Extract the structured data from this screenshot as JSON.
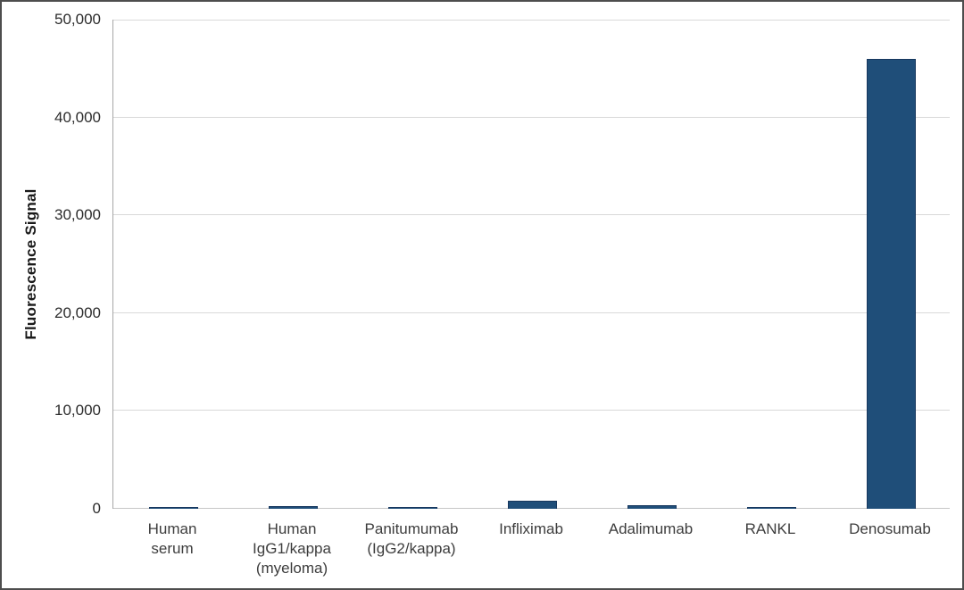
{
  "figure": {
    "background": "#ffffff",
    "border_color": "#4d4d4d"
  },
  "chart_data": {
    "type": "bar",
    "title": "",
    "xlabel": "",
    "ylabel": "Fluorescence Signal",
    "ylim": [
      0,
      50000
    ],
    "grid": "horizontal",
    "legend_position": "none",
    "y_ticks": [
      {
        "value": 50000,
        "label": "50,000"
      },
      {
        "value": 40000,
        "label": "40,000"
      },
      {
        "value": 30000,
        "label": "30,000"
      },
      {
        "value": 20000,
        "label": "20,000"
      },
      {
        "value": 10000,
        "label": "10,000"
      },
      {
        "value": 0,
        "label": "0"
      }
    ],
    "categories": [
      "Human serum",
      "Human IgG1/kappa (myeloma)",
      "Panitumumab (IgG2/kappa)",
      "Infliximab",
      "Adalimumab",
      "RANKL",
      "Denosumab"
    ],
    "category_label_lines": [
      [
        "Human",
        "serum"
      ],
      [
        "Human",
        "IgG1/kappa",
        "(myeloma)"
      ],
      [
        "Panitumumab",
        "(IgG2/kappa)"
      ],
      [
        "Infliximab"
      ],
      [
        "Adalimumab"
      ],
      [
        "RANKL"
      ],
      [
        "Denosumab"
      ]
    ],
    "values": [
      150,
      250,
      150,
      800,
      350,
      150,
      46000
    ],
    "colors": {
      "bar_fill": "#1f4e79",
      "bar_border": "#17375e",
      "gridline": "#d9d9d9",
      "baseline": "#c6c6c6",
      "axis_line": "#a6a6a6",
      "label_text": "#3d3d3d"
    }
  }
}
